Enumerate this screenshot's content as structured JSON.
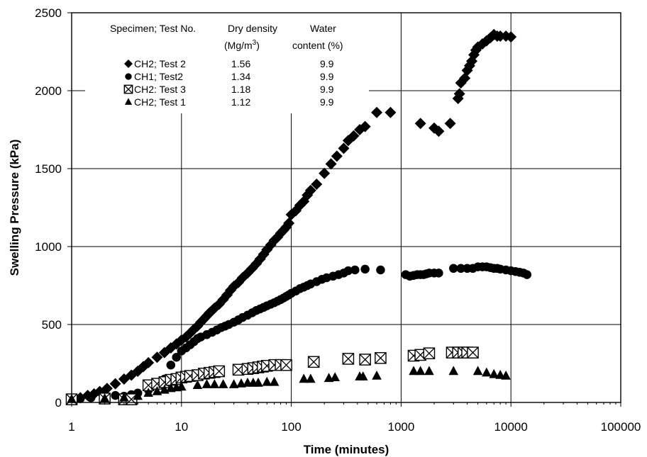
{
  "chart_data": {
    "type": "scatter",
    "title": "",
    "xlabel": "Time (minutes)",
    "ylabel": "Swelling Pressure (kPa)",
    "x_scale": "log",
    "xlim": [
      1,
      100000
    ],
    "ylim": [
      0,
      2500
    ],
    "grid": true,
    "x_ticks": [
      1,
      10,
      100,
      1000,
      10000,
      100000
    ],
    "x_tick_labels": [
      "1",
      "10",
      "100",
      "1000",
      "10000",
      "100000"
    ],
    "y_ticks": [
      0,
      500,
      1000,
      1500,
      2000,
      2500
    ],
    "y_tick_labels": [
      "0",
      "500",
      "1000",
      "1500",
      "2000",
      "2500"
    ],
    "legend": {
      "placement": "top-left inside plot",
      "headers": [
        "Specimen; Test No.",
        "Dry density",
        "(Mg/m",
        "3",
        ")",
        "Water",
        "content (%)"
      ],
      "entries": [
        {
          "label": "CH2; Test 2",
          "dry_density": "1.56",
          "water_content": "9.9",
          "marker": "diamond"
        },
        {
          "label": "CH1; Test2",
          "dry_density": "1.34",
          "water_content": "9.9",
          "marker": "circle"
        },
        {
          "label": "CH2: Test 3",
          "dry_density": "1.18",
          "water_content": "9.9",
          "marker": "boxed-x"
        },
        {
          "label": "CH2; Test 1",
          "dry_density": "1.12",
          "water_content": "9.9",
          "marker": "triangle"
        }
      ]
    },
    "series": [
      {
        "name": "CH2; Test 2",
        "marker": "diamond",
        "points": [
          [
            1,
            20
          ],
          [
            1.2,
            30
          ],
          [
            1.4,
            45
          ],
          [
            1.6,
            55
          ],
          [
            1.8,
            70
          ],
          [
            2.1,
            90
          ],
          [
            2.5,
            120
          ],
          [
            3,
            150
          ],
          [
            3.5,
            175
          ],
          [
            4,
            200
          ],
          [
            4.5,
            230
          ],
          [
            5,
            255
          ],
          [
            6,
            290
          ],
          [
            7,
            320
          ],
          [
            8,
            350
          ],
          [
            9,
            375
          ],
          [
            10,
            400
          ],
          [
            11,
            420
          ],
          [
            12,
            445
          ],
          [
            13,
            470
          ],
          [
            14,
            490
          ],
          [
            15,
            515
          ],
          [
            16,
            535
          ],
          [
            17,
            555
          ],
          [
            18,
            575
          ],
          [
            19,
            590
          ],
          [
            20,
            605
          ],
          [
            22,
            630
          ],
          [
            24,
            660
          ],
          [
            26,
            690
          ],
          [
            28,
            720
          ],
          [
            30,
            745
          ],
          [
            33,
            770
          ],
          [
            36,
            800
          ],
          [
            40,
            830
          ],
          [
            44,
            860
          ],
          [
            48,
            890
          ],
          [
            52,
            920
          ],
          [
            56,
            950
          ],
          [
            60,
            980
          ],
          [
            65,
            1010
          ],
          [
            70,
            1040
          ],
          [
            75,
            1060
          ],
          [
            80,
            1085
          ],
          [
            85,
            1105
          ],
          [
            90,
            1125
          ],
          [
            95,
            1150
          ],
          [
            100,
            1205
          ],
          [
            110,
            1230
          ],
          [
            120,
            1265
          ],
          [
            130,
            1290
          ],
          [
            140,
            1330
          ],
          [
            150,
            1360
          ],
          [
            170,
            1400
          ],
          [
            200,
            1470
          ],
          [
            230,
            1530
          ],
          [
            260,
            1580
          ],
          [
            300,
            1630
          ],
          [
            330,
            1680
          ],
          [
            370,
            1710
          ],
          [
            420,
            1750
          ],
          [
            470,
            1770
          ],
          [
            600,
            1860
          ],
          [
            800,
            1860
          ],
          [
            1500,
            1790
          ],
          [
            2000,
            1760
          ],
          [
            2200,
            1740
          ],
          [
            2800,
            1790
          ],
          [
            3300,
            1950
          ],
          [
            3400,
            1980
          ],
          [
            3500,
            2050
          ],
          [
            3800,
            2080
          ],
          [
            4000,
            2130
          ],
          [
            4200,
            2160
          ],
          [
            4400,
            2190
          ],
          [
            4600,
            2230
          ],
          [
            4800,
            2260
          ],
          [
            5000,
            2280
          ],
          [
            5500,
            2300
          ],
          [
            6000,
            2320
          ],
          [
            6500,
            2340
          ],
          [
            7000,
            2360
          ],
          [
            7500,
            2350
          ],
          [
            8000,
            2350
          ],
          [
            9000,
            2350
          ],
          [
            10000,
            2345
          ]
        ]
      },
      {
        "name": "CH1; Test2",
        "marker": "circle",
        "points": [
          [
            1,
            20
          ],
          [
            1.2,
            25
          ],
          [
            1.5,
            30
          ],
          [
            2,
            40
          ],
          [
            2.5,
            45
          ],
          [
            3,
            40
          ],
          [
            3.5,
            50
          ],
          [
            4,
            60
          ],
          [
            5,
            80
          ],
          [
            6,
            110
          ],
          [
            7,
            150
          ],
          [
            8,
            240
          ],
          [
            9,
            290
          ],
          [
            10,
            330
          ],
          [
            11,
            350
          ],
          [
            12,
            370
          ],
          [
            13,
            390
          ],
          [
            14,
            410
          ],
          [
            15,
            420
          ],
          [
            17,
            435
          ],
          [
            19,
            450
          ],
          [
            21,
            465
          ],
          [
            23,
            480
          ],
          [
            25,
            490
          ],
          [
            27,
            500
          ],
          [
            30,
            515
          ],
          [
            33,
            530
          ],
          [
            36,
            545
          ],
          [
            40,
            560
          ],
          [
            44,
            575
          ],
          [
            48,
            590
          ],
          [
            52,
            600
          ],
          [
            56,
            610
          ],
          [
            60,
            620
          ],
          [
            65,
            630
          ],
          [
            70,
            640
          ],
          [
            75,
            650
          ],
          [
            80,
            660
          ],
          [
            85,
            670
          ],
          [
            90,
            680
          ],
          [
            95,
            690
          ],
          [
            100,
            700
          ],
          [
            110,
            715
          ],
          [
            120,
            730
          ],
          [
            130,
            740
          ],
          [
            140,
            750
          ],
          [
            150,
            760
          ],
          [
            170,
            775
          ],
          [
            190,
            790
          ],
          [
            210,
            800
          ],
          [
            240,
            810
          ],
          [
            270,
            820
          ],
          [
            300,
            830
          ],
          [
            330,
            845
          ],
          [
            380,
            850
          ],
          [
            470,
            855
          ],
          [
            650,
            850
          ],
          [
            1100,
            820
          ],
          [
            1200,
            810
          ],
          [
            1300,
            815
          ],
          [
            1400,
            820
          ],
          [
            1500,
            820
          ],
          [
            1600,
            820
          ],
          [
            1700,
            825
          ],
          [
            1800,
            830
          ],
          [
            2000,
            830
          ],
          [
            2200,
            830
          ],
          [
            3000,
            860
          ],
          [
            3500,
            860
          ],
          [
            4000,
            860
          ],
          [
            4500,
            860
          ],
          [
            5000,
            870
          ],
          [
            5500,
            870
          ],
          [
            6000,
            870
          ],
          [
            6500,
            865
          ],
          [
            7000,
            860
          ],
          [
            7500,
            860
          ],
          [
            8000,
            855
          ],
          [
            9000,
            850
          ],
          [
            10000,
            845
          ],
          [
            11000,
            840
          ],
          [
            12000,
            835
          ],
          [
            13000,
            830
          ],
          [
            14000,
            820
          ]
        ]
      },
      {
        "name": "CH2: Test 3",
        "marker": "boxed-x",
        "points": [
          [
            1,
            20
          ],
          [
            2,
            25
          ],
          [
            3,
            20
          ],
          [
            3.5,
            20
          ],
          [
            5,
            110
          ],
          [
            6,
            120
          ],
          [
            7,
            130
          ],
          [
            8,
            145
          ],
          [
            9,
            150
          ],
          [
            10,
            160
          ],
          [
            11,
            165
          ],
          [
            12,
            170
          ],
          [
            14,
            175
          ],
          [
            16,
            185
          ],
          [
            18,
            190
          ],
          [
            20,
            195
          ],
          [
            22,
            200
          ],
          [
            33,
            210
          ],
          [
            40,
            215
          ],
          [
            45,
            220
          ],
          [
            50,
            225
          ],
          [
            55,
            230
          ],
          [
            60,
            235
          ],
          [
            70,
            240
          ],
          [
            80,
            240
          ],
          [
            90,
            240
          ],
          [
            160,
            260
          ],
          [
            330,
            280
          ],
          [
            470,
            275
          ],
          [
            650,
            285
          ],
          [
            1300,
            300
          ],
          [
            1500,
            305
          ],
          [
            1800,
            315
          ],
          [
            2900,
            320
          ],
          [
            3300,
            320
          ],
          [
            3700,
            320
          ],
          [
            4000,
            320
          ],
          [
            4500,
            320
          ]
        ]
      },
      {
        "name": "CH2; Test 1",
        "marker": "triangle",
        "points": [
          [
            1,
            20
          ],
          [
            2,
            25
          ],
          [
            3,
            30
          ],
          [
            4,
            40
          ],
          [
            5,
            60
          ],
          [
            6,
            70
          ],
          [
            7,
            80
          ],
          [
            8,
            90
          ],
          [
            9,
            95
          ],
          [
            10,
            100
          ],
          [
            14,
            110
          ],
          [
            17,
            115
          ],
          [
            20,
            115
          ],
          [
            24,
            115
          ],
          [
            30,
            115
          ],
          [
            35,
            120
          ],
          [
            40,
            125
          ],
          [
            45,
            125
          ],
          [
            50,
            125
          ],
          [
            60,
            130
          ],
          [
            70,
            130
          ],
          [
            130,
            150
          ],
          [
            150,
            150
          ],
          [
            220,
            155
          ],
          [
            250,
            160
          ],
          [
            420,
            165
          ],
          [
            450,
            165
          ],
          [
            600,
            170
          ],
          [
            1300,
            200
          ],
          [
            1500,
            200
          ],
          [
            1800,
            200
          ],
          [
            3000,
            200
          ],
          [
            5000,
            200
          ],
          [
            6000,
            190
          ],
          [
            7000,
            180
          ],
          [
            8000,
            175
          ],
          [
            9000,
            170
          ]
        ]
      }
    ]
  }
}
